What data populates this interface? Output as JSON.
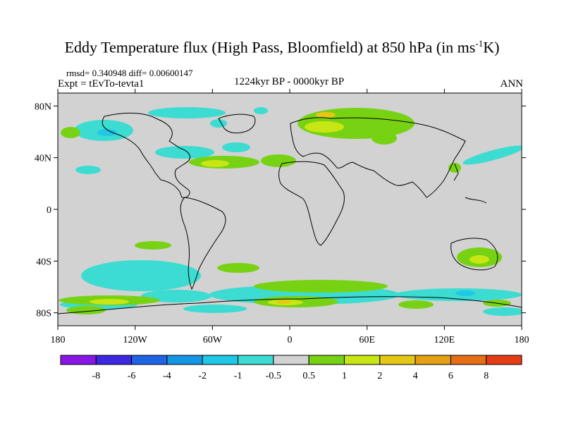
{
  "title": {
    "main": "Eddy Temperature flux (High Pass, Bloomfield) at 850 hPa (in ms",
    "sup": "-1",
    "end": "K)"
  },
  "stats": {
    "rmsd_text": "rmsd= 0.340948 diff= 0.00600147"
  },
  "experiment": "Expt = tEvTo-tevta1",
  "period": "1224kyr BP - 0000kyr BP",
  "season": "ANN",
  "map": {
    "lat_ticks": [
      {
        "label": "80N",
        "lat": 80
      },
      {
        "label": "40N",
        "lat": 40
      },
      {
        "label": "0",
        "lat": 0
      },
      {
        "label": "40S",
        "lat": -40
      },
      {
        "label": "80S",
        "lat": -80
      }
    ],
    "lon_ticks": [
      {
        "label": "180",
        "lon": -180
      },
      {
        "label": "120W",
        "lon": -120
      },
      {
        "label": "60W",
        "lon": -60
      },
      {
        "label": "0",
        "lon": 0
      },
      {
        "label": "60E",
        "lon": 60
      },
      {
        "label": "120E",
        "lon": 120
      },
      {
        "label": "180",
        "lon": 180
      }
    ],
    "background_color": "#d2d2d2"
  },
  "colorbar": {
    "colors": [
      "#8a16e6",
      "#3c28e0",
      "#1e64e6",
      "#1496e6",
      "#1ec8e6",
      "#3cdcd2",
      "#d2d2d2",
      "#78d214",
      "#c8e614",
      "#e6c814",
      "#e6a014",
      "#e66e14",
      "#e63c14"
    ],
    "labels": [
      "-8",
      "-6",
      "-4",
      "-2",
      "-1",
      "-0.5",
      "0.5",
      "1",
      "2",
      "4",
      "6",
      "8"
    ]
  }
}
